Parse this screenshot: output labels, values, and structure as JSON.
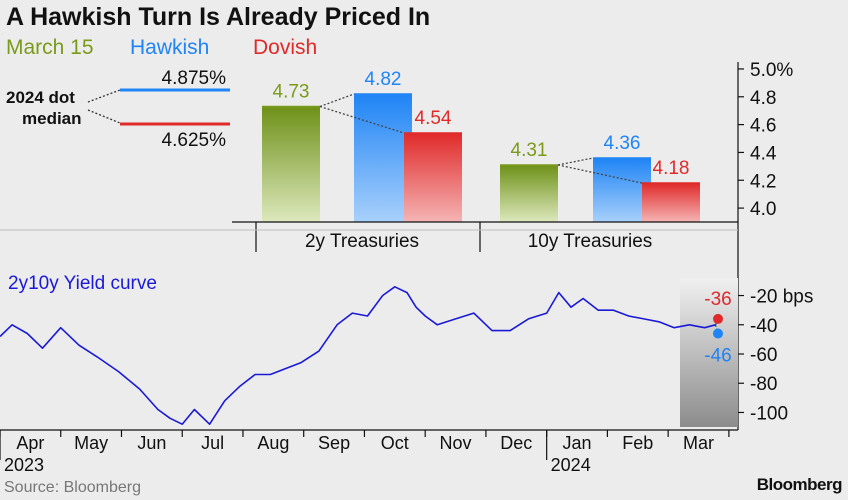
{
  "title": "A Hawkish Turn Is Already Priced In",
  "legend": [
    {
      "label": "March 15",
      "color": "#7a9a1a"
    },
    {
      "label": "Hawkish",
      "color": "#1f84f5"
    },
    {
      "label": "Dovish",
      "color": "#e02a2a"
    }
  ],
  "source": "Source: Bloomberg",
  "brand": "Bloomberg",
  "chart_data": [
    {
      "type": "bar",
      "categories": [
        "2y Treasuries",
        "10y Treasuries"
      ],
      "series": [
        {
          "name": "March 15",
          "values": [
            4.73,
            4.31
          ],
          "labels": [
            "4.73",
            "4.31"
          ],
          "color": "#7a9a1a"
        },
        {
          "name": "Hawkish",
          "values": [
            4.82,
            4.36
          ],
          "labels": [
            "4.82",
            "4.36"
          ],
          "color": "#1f84f5"
        },
        {
          "name": "Dovish",
          "values": [
            4.54,
            4.18
          ],
          "labels": [
            "4.54",
            "4.18"
          ],
          "color": "#e02a2a"
        }
      ],
      "ylim": [
        3.9,
        5.05
      ],
      "yticks": [
        4.0,
        4.2,
        4.4,
        4.6,
        4.8,
        5.0
      ],
      "ytick_labels": [
        "4.0",
        "4.2",
        "4.4",
        "4.6",
        "4.8",
        "5.0%"
      ],
      "dot_median": {
        "label_lines": [
          "2024 dot",
          "median"
        ],
        "hawkish": {
          "value": 4.875,
          "label": "4.875%"
        },
        "dovish": {
          "value": 4.625,
          "label": "4.625%"
        }
      }
    },
    {
      "type": "line",
      "label": "2y10y Yield curve",
      "ylim": [
        -112,
        -8
      ],
      "yticks": [
        -20,
        -40,
        -60,
        -80,
        -100
      ],
      "ytick_labels": [
        "-20 bps",
        "-40",
        "-60",
        "-80",
        "-100"
      ],
      "xlim": [
        0,
        12.15
      ],
      "x_months": [
        "Apr",
        "May",
        "Jun",
        "Jul",
        "Aug",
        "Sep",
        "Oct",
        "Nov",
        "Dec",
        "Jan",
        "Feb",
        "Mar"
      ],
      "x_years": [
        {
          "label": "2023",
          "at": 0
        },
        {
          "label": "2024",
          "at": 9
        }
      ],
      "series": [
        {
          "name": "2y10y Yield curve",
          "color": "#1a1ad6",
          "x": [
            0,
            0.2,
            0.45,
            0.7,
            1.0,
            1.3,
            1.6,
            1.95,
            2.3,
            2.6,
            2.8,
            3.0,
            3.2,
            3.45,
            3.7,
            3.95,
            4.2,
            4.45,
            4.7,
            4.95,
            5.25,
            5.55,
            5.8,
            6.05,
            6.3,
            6.5,
            6.7,
            6.85,
            7.0,
            7.2,
            7.5,
            7.8,
            8.1,
            8.4,
            8.7,
            9.0,
            9.2,
            9.4,
            9.6,
            9.85,
            10.1,
            10.35,
            10.6,
            10.85,
            11.1,
            11.35,
            11.6,
            11.78
          ],
          "values": [
            -48,
            -40,
            -46,
            -56,
            -42,
            -54,
            -62,
            -72,
            -84,
            -98,
            -104,
            -108,
            -98,
            -108,
            -92,
            -82,
            -74,
            -74,
            -70,
            -66,
            -58,
            -40,
            -32,
            -34,
            -20,
            -14,
            -18,
            -28,
            -34,
            -40,
            -36,
            -32,
            -44,
            -44,
            -36,
            -32,
            -18,
            -28,
            -22,
            -30,
            -30,
            -34,
            -36,
            -38,
            -42,
            -40,
            -42,
            -40
          ]
        },
        {
          "name": "Hawkish",
          "type": "scenario",
          "value": -46,
          "label": "-46",
          "color": "#1f84f5"
        },
        {
          "name": "Dovish",
          "type": "scenario",
          "value": -36,
          "label": "-36",
          "color": "#e02a2a"
        }
      ]
    }
  ]
}
